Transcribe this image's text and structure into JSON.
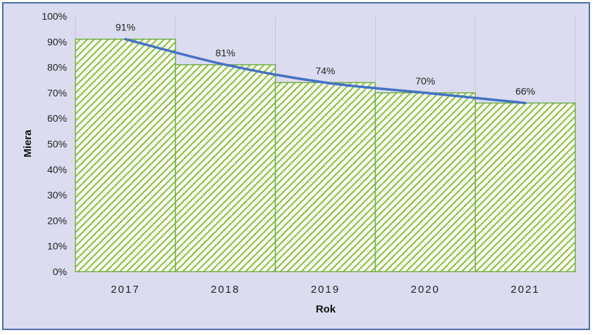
{
  "chart_data": {
    "type": "bar",
    "categories": [
      "2017",
      "2018",
      "2019",
      "2020",
      "2021"
    ],
    "values": [
      91,
      81,
      74,
      70,
      66
    ],
    "data_labels": [
      "91%",
      "81%",
      "74%",
      "70%",
      "66%"
    ],
    "trendline": "smooth",
    "xlabel": "Rok",
    "ylabel": "Miera",
    "ylim": [
      0,
      100
    ],
    "yticks": [
      "0%",
      "10%",
      "20%",
      "30%",
      "40%",
      "50%",
      "60%",
      "70%",
      "80%",
      "90%",
      "100%"
    ],
    "grid": "vertical",
    "legend": "none"
  },
  "colors": {
    "background": "#dcdcf0",
    "bar_stroke": "#70ad47",
    "bar_hatch": "#8cc63f",
    "trend_line": "#4472c4",
    "frame": "#4a6fb0"
  }
}
